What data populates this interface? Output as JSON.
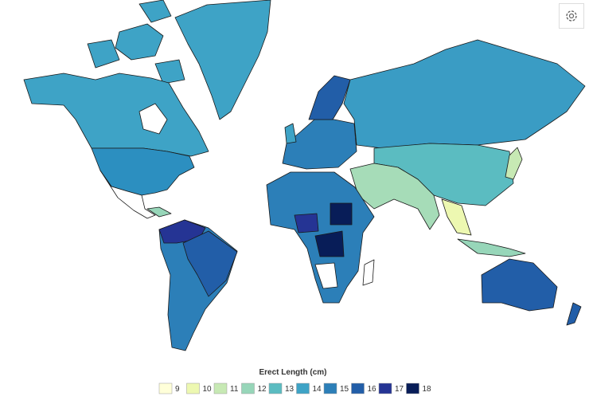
{
  "legend": {
    "title": "Erect Length (cm)",
    "items": [
      {
        "value": 9,
        "color": "#ffffd9"
      },
      {
        "value": 10,
        "color": "#edf8b1"
      },
      {
        "value": 11,
        "color": "#c7e9b4"
      },
      {
        "value": 12,
        "color": "#97d6b9"
      },
      {
        "value": 13,
        "color": "#5bbcc1"
      },
      {
        "value": 14,
        "color": "#3ea3c6"
      },
      {
        "value": 15,
        "color": "#2c7fb8"
      },
      {
        "value": 16,
        "color": "#225ea8"
      },
      {
        "value": 17,
        "color": "#253494"
      },
      {
        "value": 18,
        "color": "#081d58"
      }
    ]
  }
}
